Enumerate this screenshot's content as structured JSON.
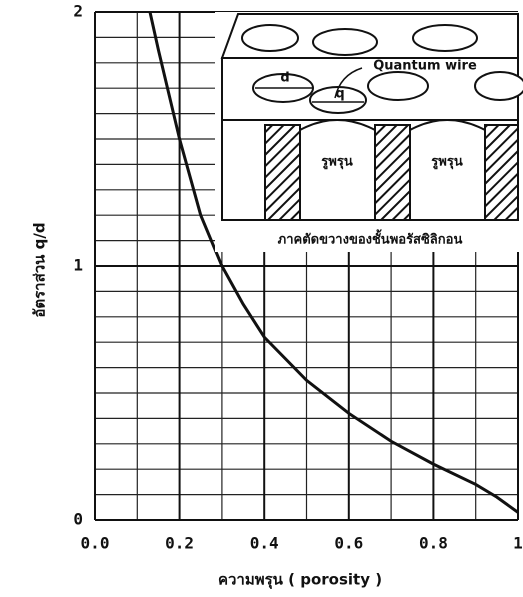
{
  "chart_data": {
    "type": "line",
    "x": [
      0.13,
      0.15,
      0.2,
      0.25,
      0.3,
      0.35,
      0.4,
      0.5,
      0.6,
      0.7,
      0.8,
      0.9,
      0.95,
      1.0
    ],
    "values": [
      2.0,
      1.85,
      1.5,
      1.2,
      1.0,
      0.85,
      0.72,
      0.55,
      0.42,
      0.31,
      0.22,
      0.14,
      0.09,
      0.03
    ],
    "color": "#111111",
    "xlim": [
      0,
      1
    ],
    "ylim": [
      0,
      2
    ],
    "xticks": [
      {
        "value": 0,
        "label": "0.0"
      },
      0.2,
      0.4,
      0.6,
      0.8,
      1
    ],
    "yticks": [
      0,
      1,
      2
    ],
    "x_minor_ticks": [
      0.1,
      0.3,
      0.5,
      0.7,
      0.9
    ],
    "y_minor_ticks": [
      0.1,
      0.2,
      0.3,
      0.4,
      0.5,
      0.6,
      0.7,
      0.8,
      0.9,
      1.1,
      1.2,
      1.3,
      1.4,
      1.5,
      1.6,
      1.7,
      1.8,
      1.9
    ],
    "grid": true,
    "x_label": "ความพรุน ( porosity )",
    "y_label": "อัตราส่วน q/d",
    "inset": {
      "d": "d",
      "wire": "Quantum wire",
      "q": "q",
      "pore_1": "รูพรุน",
      "pore_2": "รูพรุน",
      "caption": "ภาคตัดขวางของชั้นพอรัสซิลิกอน"
    }
  }
}
